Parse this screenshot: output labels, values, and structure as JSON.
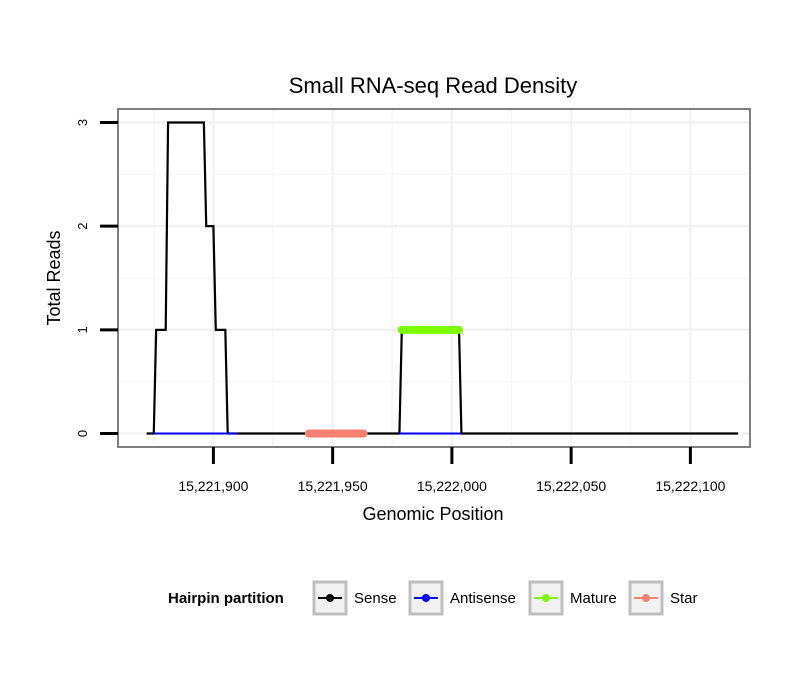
{
  "chart_data": {
    "type": "line",
    "title": "Small RNA-seq Read Density",
    "xlabel": "Genomic Position",
    "ylabel": "Total Reads",
    "xlim": [
      15221860,
      15222125
    ],
    "ylim": [
      -0.13,
      3.13
    ],
    "x_ticks": [
      15221900,
      15221950,
      15222000,
      15222050,
      15222100
    ],
    "x_tick_labels": [
      "15,221,900",
      "15,221,950",
      "15,222,000",
      "15,222,050",
      "15,222,100"
    ],
    "y_ticks": [
      0,
      1,
      2,
      3
    ],
    "y_tick_labels": [
      "0",
      "1",
      "2",
      "3"
    ],
    "grid": true,
    "legend": {
      "title": "Hairpin partition",
      "position": "bottom",
      "entries": [
        {
          "name": "Sense",
          "color": "#000000"
        },
        {
          "name": "Antisense",
          "color": "#0000ff"
        },
        {
          "name": "Mature",
          "color": "#7cfc00"
        },
        {
          "name": "Star",
          "color": "#fa8072"
        }
      ]
    },
    "series": [
      {
        "name": "Sense",
        "color": "#000000",
        "x": [
          15221872,
          15221875,
          15221876,
          15221880,
          15221881,
          15221896,
          15221897,
          15221900,
          15221901,
          15221905,
          15221906,
          15221910,
          15221978,
          15221979,
          15222003,
          15222004,
          15222120
        ],
        "y": [
          0,
          0,
          1,
          1,
          3,
          3,
          2,
          2,
          1,
          1,
          0,
          0,
          0,
          1,
          1,
          0,
          0
        ]
      },
      {
        "name": "Antisense",
        "color": "#0000ff",
        "x": [
          15221875,
          15221910,
          15221978,
          15222004
        ],
        "y": [
          0,
          0,
          0,
          0
        ],
        "segments": [
          [
            15221875,
            15221910
          ],
          [
            15221978,
            15222004
          ]
        ]
      },
      {
        "name": "Mature",
        "color": "#7cfc00",
        "x": [
          15221979,
          15222003
        ],
        "y": [
          1,
          1
        ]
      },
      {
        "name": "Star",
        "color": "#fa8072",
        "x": [
          15221940,
          15221963
        ],
        "y": [
          0,
          0
        ]
      }
    ]
  }
}
